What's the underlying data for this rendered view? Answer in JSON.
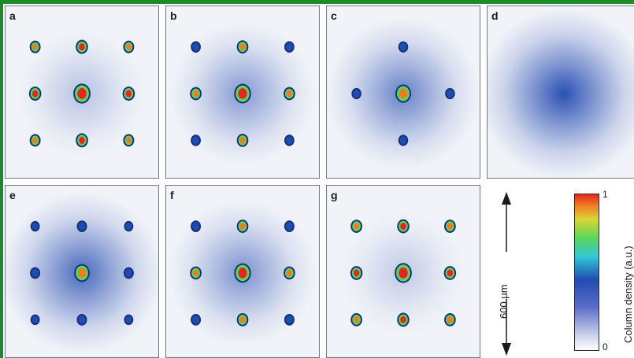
{
  "panels": [
    {
      "letter": "a",
      "halo": 0.3,
      "peaks": {
        "center": 1.0,
        "side": 0.95,
        "corner": 0.6
      }
    },
    {
      "letter": "b",
      "halo": 0.55,
      "peaks": {
        "center": 0.95,
        "side": 0.75,
        "corner": 0.35
      }
    },
    {
      "letter": "c",
      "halo": 0.7,
      "peaks": {
        "center": 0.75,
        "side": 0.3,
        "corner": 0.0
      }
    },
    {
      "letter": "d",
      "halo": 1.0,
      "peaks": {
        "center": 0.0,
        "side": 0.0,
        "corner": 0.0
      }
    },
    {
      "letter": "e",
      "halo": 0.85,
      "peaks": {
        "center": 0.7,
        "side": 0.4,
        "corner": 0.15
      }
    },
    {
      "letter": "f",
      "halo": 0.6,
      "peaks": {
        "center": 0.92,
        "side": 0.75,
        "corner": 0.4
      }
    },
    {
      "letter": "g",
      "halo": 0.25,
      "peaks": {
        "center": 1.0,
        "side": 0.92,
        "corner": 0.75
      }
    }
  ],
  "scale_bar": {
    "label": "600 µm"
  },
  "colorbar": {
    "label": "Column density (a.u.)",
    "max_tick": "1",
    "min_tick": "0"
  },
  "colors": {
    "frame": "#1f8a2c",
    "halo": "#2148b0",
    "peak_high": "#e3261f",
    "peak_mid": "#5ad65a",
    "peak_low": "#1f4cb0"
  }
}
